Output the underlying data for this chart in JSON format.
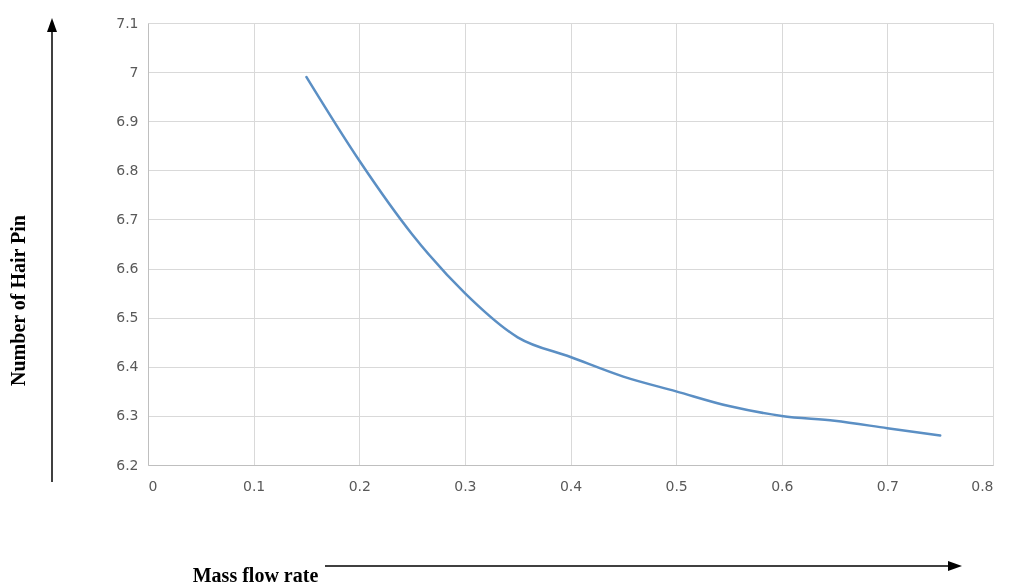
{
  "chart_data": {
    "type": "line",
    "xlabel": "Mass flow rate",
    "ylabel": "Number of Hair Pin",
    "x": [
      0.15,
      0.2,
      0.25,
      0.3,
      0.35,
      0.4,
      0.45,
      0.5,
      0.55,
      0.6,
      0.65,
      0.7,
      0.75
    ],
    "series": [
      {
        "color": "#5b8fc4",
        "values": [
          6.99,
          6.82,
          6.67,
          6.55,
          6.46,
          6.42,
          6.38,
          6.35,
          6.32,
          6.3,
          6.29,
          6.275,
          6.26
        ]
      }
    ],
    "xlim": [
      0,
      0.8
    ],
    "xticks": [
      0,
      0.1,
      0.2,
      0.3,
      0.4,
      0.5,
      0.6,
      0.7,
      0.8
    ],
    "ylim": [
      6.2,
      7.1
    ],
    "yticks": [
      6.2,
      6.3,
      6.4,
      6.5,
      6.6,
      6.7,
      6.8,
      6.9,
      7,
      7.1
    ],
    "grid": true,
    "marker": "none",
    "line_style": "solid"
  }
}
